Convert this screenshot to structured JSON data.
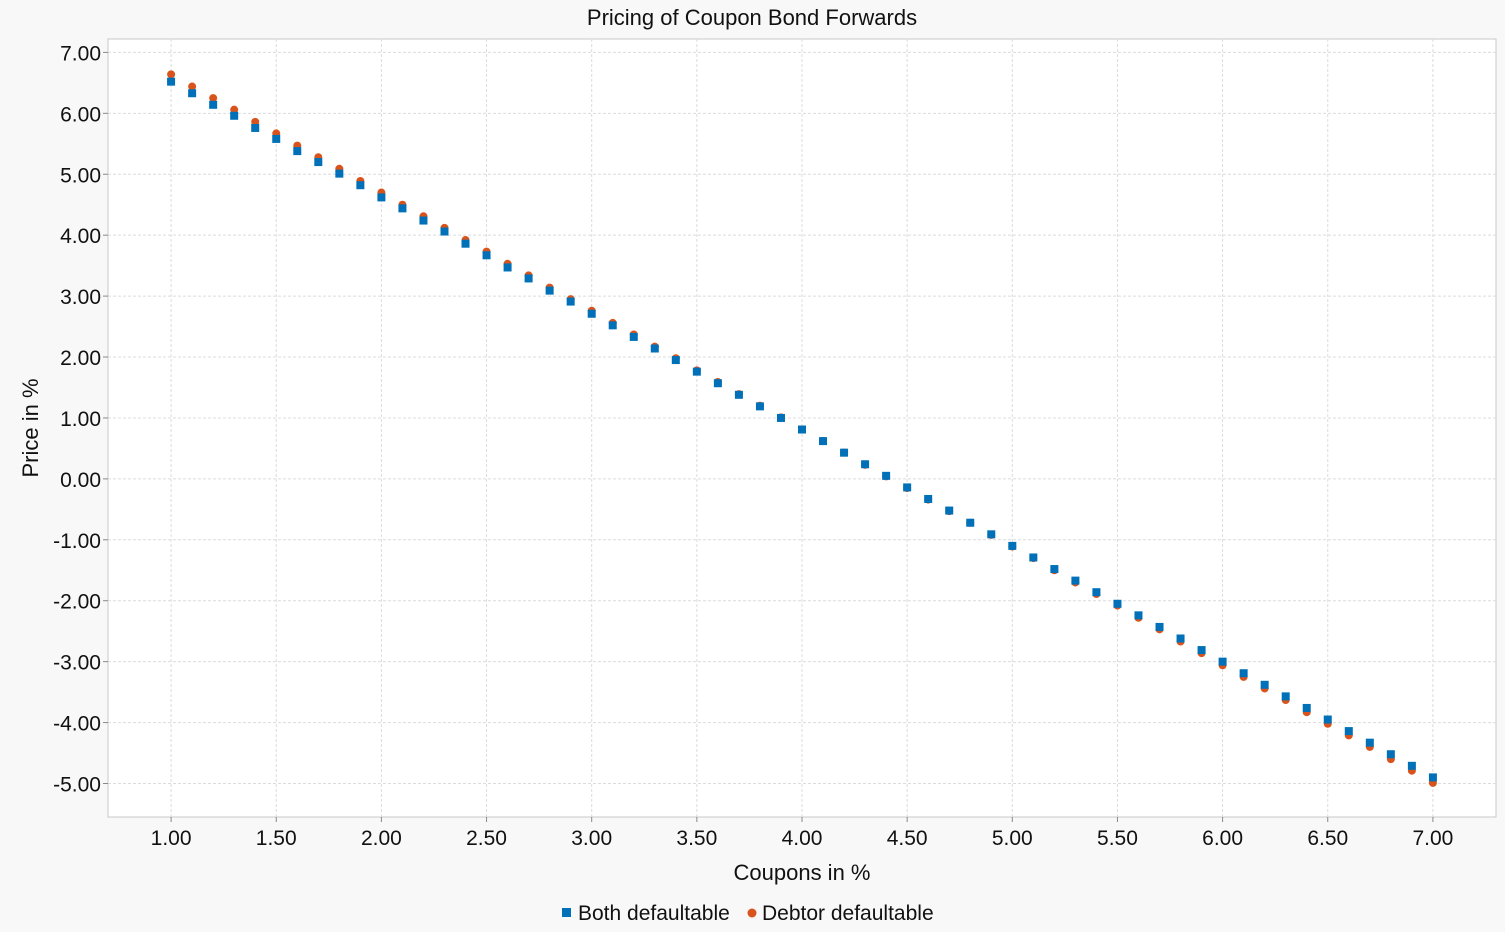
{
  "chart_data": {
    "type": "scatter",
    "title": "Pricing of Coupon Bond Forwards",
    "xlabel": "Coupons in %",
    "ylabel": "Price in %",
    "xlim": [
      0.7,
      7.3
    ],
    "ylim": [
      -5.55,
      7.22
    ],
    "x_ticks": [
      1.0,
      1.5,
      2.0,
      2.5,
      3.0,
      3.5,
      4.0,
      4.5,
      5.0,
      5.5,
      6.0,
      6.5,
      7.0
    ],
    "x_tick_labels": [
      "1.00",
      "1.50",
      "2.00",
      "2.50",
      "3.00",
      "3.50",
      "4.00",
      "4.50",
      "5.00",
      "5.50",
      "6.00",
      "6.50",
      "7.00"
    ],
    "y_ticks": [
      7,
      6,
      5,
      4,
      3,
      2,
      1,
      0,
      -1,
      -2,
      -3,
      -4,
      -5
    ],
    "y_tick_labels": [
      "7.00",
      "6.00",
      "5.00",
      "4.00",
      "3.00",
      "2.00",
      "1.00",
      "0.00",
      "-1.00",
      "-2.00",
      "-3.00",
      "-4.00",
      "-5.00"
    ],
    "grid": true,
    "legend_position": "bottom",
    "x": [
      1.0,
      1.1,
      1.2,
      1.3,
      1.4,
      1.5,
      1.6,
      1.7,
      1.8,
      1.9,
      2.0,
      2.1,
      2.2,
      2.3,
      2.4,
      2.5,
      2.6,
      2.7,
      2.8,
      2.9,
      3.0,
      3.1,
      3.2,
      3.3,
      3.4,
      3.5,
      3.6,
      3.7,
      3.8,
      3.9,
      4.0,
      4.1,
      4.2,
      4.3,
      4.4,
      4.5,
      4.6,
      4.7,
      4.8,
      4.9,
      5.0,
      5.1,
      5.2,
      5.3,
      5.4,
      5.5,
      5.6,
      5.7,
      5.8,
      5.9,
      6.0,
      6.1,
      6.2,
      6.3,
      6.4,
      6.5,
      6.6,
      6.7,
      6.8,
      6.9,
      7.0
    ],
    "series": [
      {
        "name": "Both defaultable",
        "marker": "square",
        "color": "#0070b8",
        "values": [
          6.52,
          6.33,
          6.14,
          5.96,
          5.76,
          5.58,
          5.38,
          5.2,
          5.01,
          4.82,
          4.62,
          4.44,
          4.24,
          4.06,
          3.86,
          3.67,
          3.47,
          3.29,
          3.09,
          2.91,
          2.71,
          2.52,
          2.33,
          2.14,
          1.95,
          1.76,
          1.57,
          1.38,
          1.19,
          1.0,
          0.81,
          0.62,
          0.43,
          0.24,
          0.05,
          -0.14,
          -0.33,
          -0.52,
          -0.72,
          -0.91,
          -1.1,
          -1.29,
          -1.48,
          -1.67,
          -1.86,
          -2.05,
          -2.24,
          -2.43,
          -2.62,
          -2.81,
          -3.0,
          -3.19,
          -3.38,
          -3.57,
          -3.76,
          -3.95,
          -4.14,
          -4.33,
          -4.52,
          -4.71,
          -4.9
        ]
      },
      {
        "name": "Debtor defaultable",
        "marker": "circle",
        "color": "#d9541c",
        "values": [
          6.64,
          6.44,
          6.25,
          6.06,
          5.86,
          5.67,
          5.47,
          5.28,
          5.09,
          4.89,
          4.7,
          4.5,
          4.31,
          4.12,
          3.92,
          3.73,
          3.53,
          3.34,
          3.14,
          2.95,
          2.76,
          2.56,
          2.37,
          2.17,
          1.98,
          1.78,
          1.59,
          1.39,
          1.2,
          1.01,
          0.81,
          0.62,
          0.43,
          0.23,
          0.04,
          -0.15,
          -0.34,
          -0.53,
          -0.72,
          -0.92,
          -1.11,
          -1.3,
          -1.5,
          -1.7,
          -1.89,
          -2.08,
          -2.28,
          -2.47,
          -2.67,
          -2.86,
          -3.06,
          -3.25,
          -3.44,
          -3.63,
          -3.83,
          -4.02,
          -4.21,
          -4.4,
          -4.6,
          -4.79,
          -4.99
        ]
      }
    ]
  }
}
